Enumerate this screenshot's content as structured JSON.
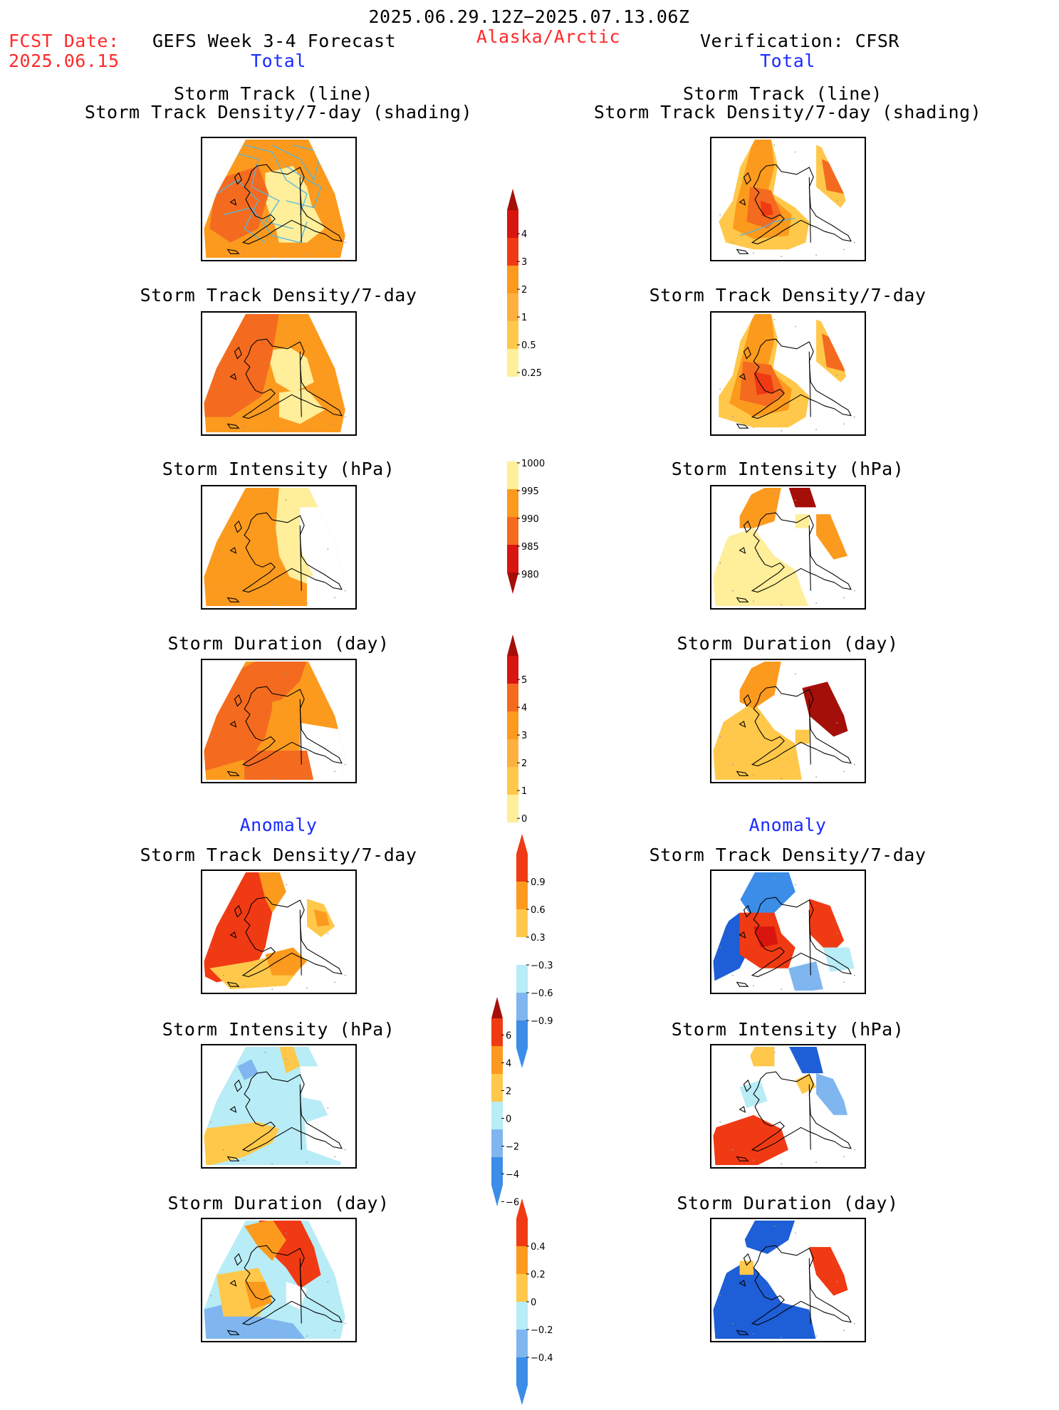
{
  "header": {
    "date_range": "2025.06.29.12Z−2025.07.13.06Z",
    "fcst_label": "FCST Date:",
    "fcst_date": "2025.06.15",
    "model": "GEFS Week 3-4 Forecast",
    "region": "Alaska/Arctic",
    "verification": "Verification: CFSR"
  },
  "columns": {
    "left_total": "Total",
    "right_total": "Total",
    "left_anomaly": "Anomaly",
    "right_anomaly": "Anomaly"
  },
  "panel_titles": {
    "track_line": "Storm Track (line)",
    "track_shading": "Storm Track Density/7-day (shading)",
    "density": "Storm Track Density/7-day",
    "intensity": "Storm Intensity (hPa)",
    "duration": "Storm Duration (day)"
  },
  "colorbars": {
    "density": [
      "4",
      "3",
      "2",
      "1",
      "0.5",
      "0.25"
    ],
    "intensity": [
      "1000",
      "995",
      "990",
      "985",
      "980"
    ],
    "duration": [
      "5",
      "4",
      "3",
      "2",
      "1",
      "0"
    ],
    "density_anom": [
      "0.9",
      "0.6",
      "0.3",
      "−0.3",
      "−0.6",
      "−0.9"
    ],
    "intensity_anom": [
      "6",
      "4",
      "2",
      "0",
      "−2",
      "−4",
      "−6"
    ],
    "duration_anom": [
      "0.4",
      "0.2",
      "0",
      "−0.2",
      "−0.4"
    ]
  },
  "colors": {
    "pale_yellow": "#ffee9a",
    "yellow": "#ffc84a",
    "light_orange": "#fdb040",
    "orange": "#fc9a1e",
    "dark_orange": "#f46b1f",
    "red_orange": "#f03a14",
    "red": "#d8150e",
    "dark_red": "#a50f0a",
    "pale_cyan": "#b8ecf6",
    "light_blue": "#7fb6ef",
    "blue": "#3b8de8",
    "dark_blue": "#1e5ed6",
    "track_line": "#4fb7e0"
  }
}
